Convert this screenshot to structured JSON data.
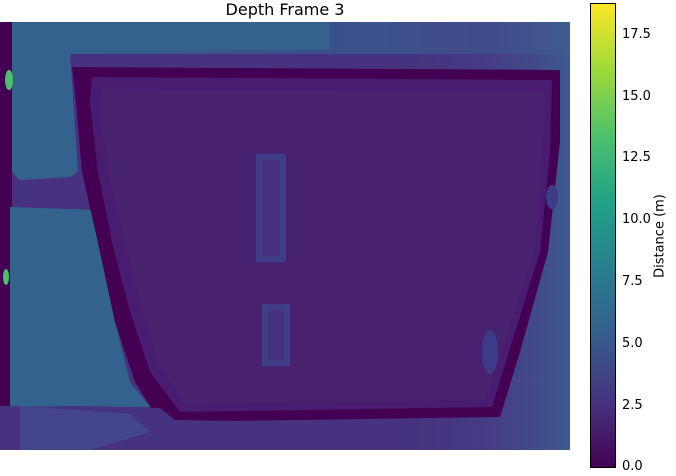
{
  "figure": {
    "title": "Depth Frame 3"
  },
  "colorbar": {
    "label": "Distance (m)",
    "colormap": "viridis",
    "range": [
      0.0,
      18.7
    ],
    "ticks": [
      "0.0",
      "2.5",
      "5.0",
      "7.5",
      "10.0",
      "12.5",
      "15.0",
      "17.5"
    ],
    "colors": {
      "dark_purple": "#440154",
      "purple": "#46327e",
      "blue_purple": "#365c8d",
      "teal_blue": "#277f8e",
      "teal": "#1fa187",
      "green": "#4ac16d",
      "yellow_green": "#a0da39",
      "yellow": "#fde725"
    }
  }
}
